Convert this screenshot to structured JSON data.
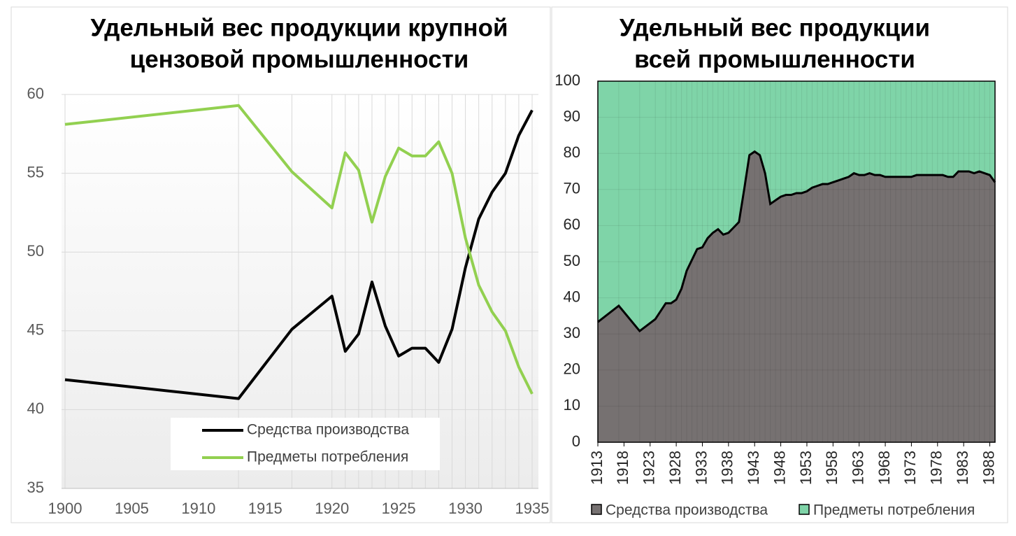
{
  "chart_data": [
    {
      "type": "line",
      "title": [
        "Удельный вес продукции крупной",
        "цензовой промышленности"
      ],
      "x": [
        1900,
        1913,
        1917,
        1920,
        1921,
        1922,
        1923,
        1924,
        1925,
        1926,
        1927,
        1928,
        1929,
        1930,
        1931,
        1932,
        1933,
        1934,
        1935
      ],
      "series": [
        {
          "name": "Средства производства",
          "color": "#000000",
          "values": [
            41.9,
            40.7,
            45.1,
            47.2,
            43.7,
            44.8,
            48.1,
            45.3,
            43.4,
            43.9,
            43.9,
            43.0,
            45.1,
            49.0,
            52.1,
            53.8,
            55.0,
            57.4,
            59.0
          ]
        },
        {
          "name": "Предметы потребления",
          "color": "#92d050",
          "values": [
            58.1,
            59.3,
            55.1,
            52.8,
            56.3,
            55.2,
            51.9,
            54.8,
            56.6,
            56.1,
            56.1,
            57.0,
            55.0,
            50.9,
            47.9,
            46.2,
            45.0,
            42.7,
            41.0
          ]
        }
      ],
      "xlim": [
        1900,
        1935
      ],
      "xticks": [
        1900,
        1905,
        1910,
        1915,
        1920,
        1925,
        1930,
        1935
      ],
      "ylim": [
        35,
        60
      ],
      "yticks": [
        35,
        40,
        45,
        50,
        55,
        60
      ],
      "grid": true
    },
    {
      "type": "area",
      "stacked": true,
      "title": [
        "Удельный вес продукции",
        "всей промышленности"
      ],
      "x": [
        1913,
        1917,
        1921,
        1924,
        1926,
        1927,
        1928,
        1929,
        1930,
        1931,
        1932,
        1933,
        1934,
        1935,
        1936,
        1937,
        1938,
        1939,
        1940,
        1941,
        1942,
        1943,
        1944,
        1945,
        1946,
        1947,
        1948,
        1949,
        1950,
        1951,
        1952,
        1953,
        1954,
        1955,
        1956,
        1957,
        1958,
        1959,
        1960,
        1961,
        1962,
        1963,
        1964,
        1965,
        1966,
        1967,
        1968,
        1969,
        1970,
        1971,
        1972,
        1973,
        1974,
        1975,
        1976,
        1977,
        1978,
        1979,
        1980,
        1981,
        1982,
        1983,
        1984,
        1985,
        1986,
        1987,
        1988,
        1989
      ],
      "series": [
        {
          "name": "Средства производства",
          "color": "#767171",
          "values": [
            33.3,
            37.8,
            30.8,
            34.1,
            38.5,
            38.5,
            39.5,
            42.5,
            47.5,
            50.5,
            53.5,
            54,
            56.5,
            58,
            59,
            57.5,
            58,
            59.5,
            61,
            70,
            79.5,
            80.5,
            79.5,
            74.5,
            66,
            67,
            68,
            68.5,
            68.5,
            69,
            69,
            69.5,
            70.5,
            71,
            71.5,
            71.5,
            72,
            72.5,
            73,
            73.5,
            74.5,
            74,
            74,
            74.5,
            74,
            74,
            73.5,
            73.5,
            73.5,
            73.5,
            73.5,
            73.5,
            74,
            74,
            74,
            74,
            74,
            74,
            73.5,
            73.5,
            75,
            75,
            75,
            74.5,
            75,
            74.5,
            74,
            72
          ]
        },
        {
          "name": "Предметы потребления",
          "color": "#7fd4a8",
          "values": [
            66.7,
            62.2,
            69.2,
            65.9,
            61.5,
            61.5,
            60.5,
            57.5,
            52.5,
            49.5,
            46.5,
            46,
            43.5,
            42,
            41,
            42.5,
            42,
            40.5,
            39,
            30,
            20.5,
            19.5,
            20.5,
            25.5,
            34,
            33,
            32,
            31.5,
            31.5,
            31,
            31,
            30.5,
            29.5,
            29,
            28.5,
            28.5,
            28,
            27.5,
            27,
            26.5,
            25.5,
            26,
            26,
            25.5,
            26,
            26,
            26.5,
            26.5,
            26.5,
            26.5,
            26.5,
            26.5,
            26,
            26,
            26,
            26,
            26,
            26,
            26.5,
            26.5,
            25,
            25,
            25,
            25.5,
            25,
            25.5,
            26,
            28
          ]
        }
      ],
      "xlim": [
        1913,
        1989
      ],
      "xticks": [
        1913,
        1918,
        1923,
        1928,
        1933,
        1938,
        1943,
        1948,
        1953,
        1958,
        1963,
        1968,
        1973,
        1978,
        1983,
        1988
      ],
      "ylim": [
        0,
        100
      ],
      "yticks": [
        0,
        10,
        20,
        30,
        40,
        50,
        60,
        70,
        80,
        90,
        100
      ]
    }
  ]
}
